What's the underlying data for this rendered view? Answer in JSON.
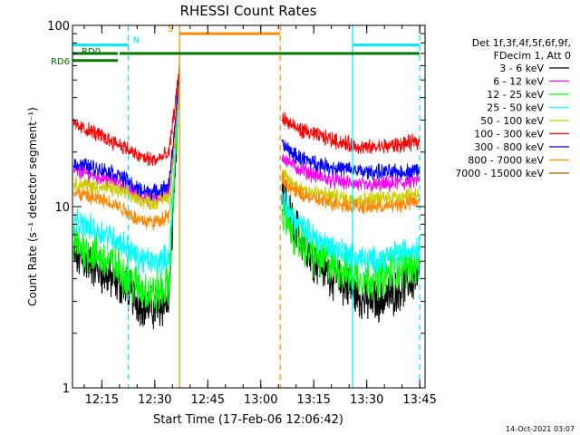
{
  "chart_data": {
    "type": "line",
    "title": "RHESSI Count Rates",
    "xlabel": "Start Time (17-Feb-06 12:06:42)",
    "ylabel": "Count Rate (s⁻¹ detector segment⁻¹)",
    "y_scale": "log",
    "ylim": [
      1,
      100
    ],
    "xlim": [
      "12:06:42",
      "13:46:30"
    ],
    "x_ticks": [
      "12:15",
      "12:30",
      "12:45",
      "13:00",
      "13:15",
      "13:30",
      "13:45"
    ],
    "y_ticks": [
      "1",
      "10",
      "100"
    ],
    "legend_header": [
      "Det 1f,3f,4f,5f,6f,9f,",
      "FDecim 1, Att 0"
    ],
    "legend_position": "right",
    "timestamp": "14-Oct-2021 03:07",
    "data_gap": [
      "12:37:00",
      "13:05:30"
    ],
    "series": [
      {
        "name": "3 - 6 keV",
        "color": "#000000",
        "x": [
          "12:07",
          "12:12",
          "12:18",
          "12:22",
          "12:25",
          "12:30",
          "12:34",
          "12:37",
          "13:06",
          "13:10",
          "13:15",
          "13:20",
          "13:25",
          "13:30",
          "13:35",
          "13:40",
          "13:45"
        ],
        "values": [
          5.3,
          4.8,
          3.9,
          3.6,
          3.0,
          2.7,
          3.0,
          54,
          11.5,
          7.5,
          5.2,
          4.2,
          3.5,
          3.0,
          3.1,
          3.6,
          4.2
        ]
      },
      {
        "name": "6 - 12 keV",
        "color": "#ff00ff",
        "x": [
          "12:07",
          "12:12",
          "12:18",
          "12:22",
          "12:25",
          "12:30",
          "12:34",
          "12:37",
          "13:06",
          "13:10",
          "13:15",
          "13:20",
          "13:25",
          "13:30",
          "13:35",
          "13:40",
          "13:45"
        ],
        "values": [
          16,
          15,
          14,
          13,
          11.5,
          11,
          12,
          50,
          19,
          16.5,
          15,
          14,
          13.5,
          13,
          13.2,
          13.5,
          14
        ]
      },
      {
        "name": "12 - 25 keV",
        "color": "#00ff00",
        "x": [
          "12:07",
          "12:12",
          "12:18",
          "12:22",
          "12:25",
          "12:30",
          "12:34",
          "12:37",
          "13:06",
          "13:10",
          "13:15",
          "13:20",
          "13:25",
          "13:30",
          "13:35",
          "13:40",
          "13:45"
        ],
        "values": [
          6.2,
          5.6,
          4.8,
          4.2,
          3.6,
          3.3,
          3.6,
          50,
          9.0,
          6.8,
          5.4,
          4.8,
          4.3,
          4.0,
          4.2,
          4.6,
          5.0
        ]
      },
      {
        "name": "25 - 50 keV",
        "color": "#00ffff",
        "x": [
          "12:07",
          "12:12",
          "12:18",
          "12:22",
          "12:25",
          "12:30",
          "12:34",
          "12:37",
          "13:06",
          "13:10",
          "13:15",
          "13:20",
          "13:25",
          "13:30",
          "13:35",
          "13:40",
          "13:45"
        ],
        "values": [
          8.2,
          7.6,
          6.8,
          6.0,
          5.2,
          4.9,
          5.3,
          50,
          11,
          8.2,
          6.8,
          6.0,
          5.5,
          5.0,
          5.2,
          5.6,
          6.0
        ]
      },
      {
        "name": "50 - 100 keV",
        "color": "#cccc00",
        "x": [
          "12:07",
          "12:12",
          "12:18",
          "12:22",
          "12:25",
          "12:30",
          "12:34",
          "12:37",
          "13:06",
          "13:10",
          "13:15",
          "13:20",
          "13:25",
          "13:30",
          "13:35",
          "13:40",
          "13:45"
        ],
        "values": [
          13.5,
          13,
          12.5,
          11.8,
          11,
          10.5,
          11.5,
          50,
          15,
          13,
          12,
          11.5,
          11,
          11,
          11.2,
          11.5,
          12
        ]
      },
      {
        "name": "100 - 300 keV",
        "color": "#ff0000",
        "x": [
          "12:07",
          "12:12",
          "12:18",
          "12:22",
          "12:25",
          "12:30",
          "12:34",
          "12:37",
          "13:06",
          "13:10",
          "13:15",
          "13:20",
          "13:25",
          "13:30",
          "13:35",
          "13:40",
          "13:45"
        ],
        "values": [
          28,
          26,
          23,
          21,
          19,
          18,
          19.5,
          58,
          31,
          27,
          25,
          23.5,
          22,
          21,
          21.5,
          22,
          23
        ]
      },
      {
        "name": "300 - 800 keV",
        "color": "#0000ff",
        "x": [
          "12:07",
          "12:12",
          "12:18",
          "12:22",
          "12:25",
          "12:30",
          "12:34",
          "12:37",
          "13:06",
          "13:10",
          "13:15",
          "13:20",
          "13:25",
          "13:30",
          "13:35",
          "13:40",
          "13:45"
        ],
        "values": [
          17.5,
          16.5,
          15.5,
          14,
          12.5,
          12,
          13,
          52,
          22,
          19,
          17.5,
          16.5,
          16,
          15.5,
          15.5,
          15.5,
          16
        ]
      },
      {
        "name": "800 - 7000 keV",
        "color": "#ff8800",
        "x": [
          "12:07",
          "12:12",
          "12:18",
          "12:22",
          "12:25",
          "12:30",
          "12:34",
          "12:37",
          "13:06",
          "13:10",
          "13:15",
          "13:20",
          "13:25",
          "13:30",
          "13:35",
          "13:40",
          "13:45"
        ],
        "values": [
          12,
          11.2,
          10.5,
          9.5,
          8.5,
          8.2,
          9,
          48,
          14,
          12,
          11,
          10.5,
          10.2,
          10,
          10,
          10.3,
          10.8
        ]
      },
      {
        "name": "7000 - 15000 keV",
        "color": "#996600",
        "x": [],
        "values": []
      }
    ],
    "bars": [
      {
        "label": "",
        "color": "#00e8ff",
        "y": 78,
        "start": "12:06:42",
        "end": "12:22:30"
      },
      {
        "label": "N",
        "color": "#00e8ff",
        "y": 78,
        "start": "",
        "end": ""
      },
      {
        "label": "",
        "color": "#00e8ff",
        "y": 78,
        "start": "13:26:00",
        "end": "13:45:00"
      },
      {
        "label": "S",
        "color": "#ff8800",
        "y": 90,
        "start": "12:37:00",
        "end": "13:05:30"
      },
      {
        "label": "RD0",
        "color": "#007700",
        "y": 70,
        "start": "12:06:42",
        "end": "12:19:30"
      },
      {
        "label": "RD6",
        "color": "#007700",
        "y": 64,
        "start": "12:06:42",
        "end": "12:19:30"
      },
      {
        "label": "",
        "color": "#007700",
        "y": 70,
        "start": "12:20:00",
        "end": "13:45:00"
      }
    ],
    "vlines": [
      {
        "time": "12:22:30",
        "color": "#00e8ff",
        "style": "dashed"
      },
      {
        "time": "12:37:00",
        "color": "#ff8800",
        "style": "solid"
      },
      {
        "time": "13:05:30",
        "color": "#ff8800",
        "style": "dashed"
      },
      {
        "time": "13:26:00",
        "color": "#00e8ff",
        "style": "solid"
      },
      {
        "time": "13:45:00",
        "color": "#00e8ff",
        "style": "dashed"
      }
    ]
  }
}
